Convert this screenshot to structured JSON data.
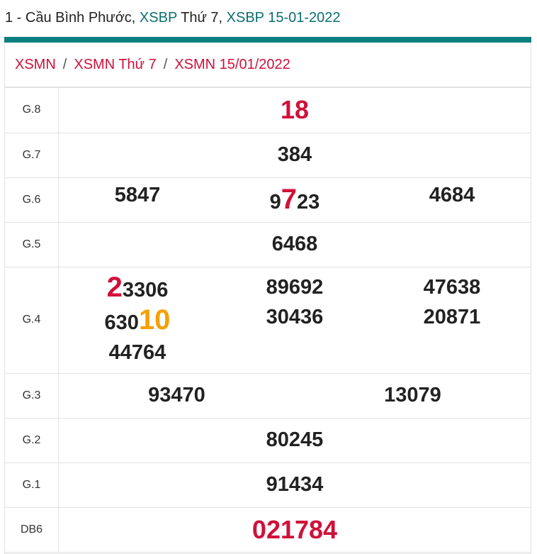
{
  "header": {
    "prefix": "1 - Cầu Bình Phước, ",
    "link1": "XSBP",
    "mid": " Thứ 7, ",
    "link2": "XSBP 15-01-2022"
  },
  "breadcrumb": [
    "XSMN",
    "XSMN Thứ 7",
    "XSMN 15/01/2022"
  ],
  "colors": {
    "accent": "#0a7f80",
    "red": "#d0103a",
    "orange": "#f5a000"
  },
  "prizes": {
    "g8": {
      "label": "G.8",
      "value": "18"
    },
    "g7": {
      "label": "G.7",
      "value": "384"
    },
    "g6": {
      "label": "G.6",
      "values": [
        "5847",
        [
          "9",
          "7",
          "23"
        ],
        "4684"
      ]
    },
    "g5": {
      "label": "G.5",
      "value": "6468"
    },
    "g4": {
      "label": "G.4",
      "col1": [
        [
          "2",
          "3306"
        ],
        [
          "630",
          "10"
        ],
        "44764"
      ],
      "col2": [
        "89692",
        "30436"
      ],
      "col3": [
        "47638",
        "20871"
      ]
    },
    "g3": {
      "label": "G.3",
      "values": [
        "93470",
        "13079"
      ]
    },
    "g2": {
      "label": "G.2",
      "value": "80245"
    },
    "g1": {
      "label": "G.1",
      "value": "91434"
    },
    "db": {
      "label": "DB6",
      "value": "021784"
    }
  }
}
